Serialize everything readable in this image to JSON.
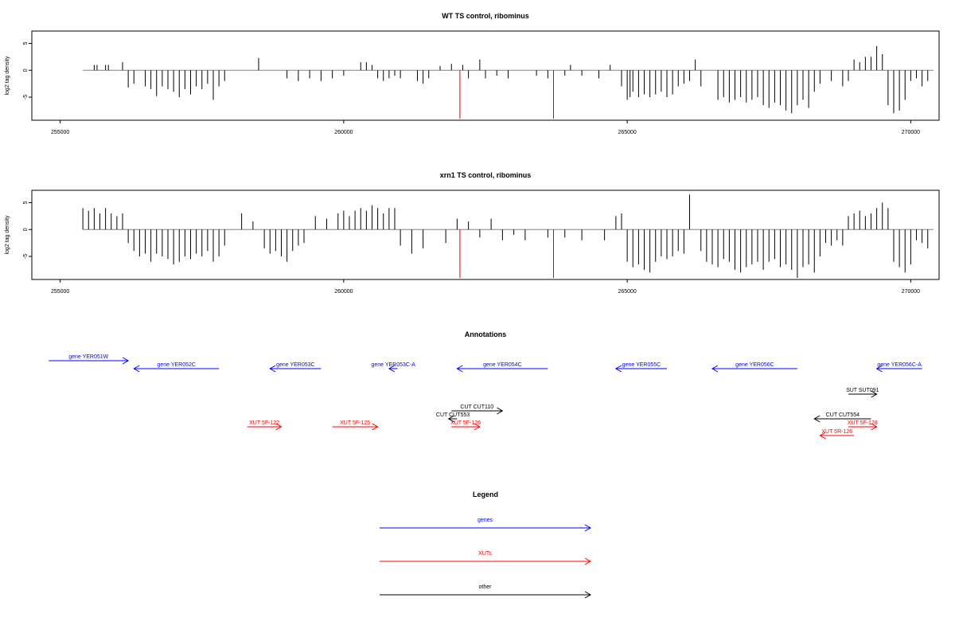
{
  "chart_data": [
    {
      "type": "bar",
      "title": "WT TS control, ribominus",
      "xlabel": "",
      "ylabel": "log2 tag density",
      "xlim": [
        254500,
        270500
      ],
      "ylim": [
        -9,
        7
      ],
      "xticks": [
        255000,
        260000,
        265000,
        270000
      ],
      "xtick_labels": [
        "255000",
        "260000",
        "265000",
        "270000"
      ],
      "yticks": [
        5,
        0,
        -5
      ],
      "ytick_labels": [
        "5",
        "0",
        "-5"
      ],
      "baseline": {
        "x0": 255400,
        "x1": 270400,
        "y": 0,
        "color": "#808080"
      },
      "highlight_lines": [
        {
          "x": 262050,
          "y": -9.0,
          "color": "#e00000"
        },
        {
          "x": 263700,
          "y": -9.0,
          "color": "#e00000"
        }
      ],
      "series": [
        {
          "color": "#000000",
          "x": [
            255600,
            255650,
            255800,
            255850,
            256100,
            256200,
            256300,
            256500,
            256600,
            256700,
            256800,
            256900,
            257000,
            257100,
            257200,
            257300,
            257400,
            257500,
            257600,
            257700,
            257800,
            257900,
            258500,
            259000,
            259200,
            259400,
            259600,
            259800,
            260000,
            260300,
            260400,
            260500,
            260600,
            260700,
            260800,
            260900,
            261000,
            261300,
            261400,
            261500,
            261700,
            261900,
            262100,
            262200,
            262400,
            262500,
            262700,
            262900,
            263400,
            263600,
            263900,
            264000,
            264200,
            264500,
            264700,
            264900,
            265000,
            265050,
            265100,
            265200,
            265300,
            265400,
            265500,
            265600,
            265700,
            265800,
            265900,
            266000,
            266100,
            266200,
            266300,
            266600,
            266700,
            266800,
            266900,
            267000,
            267100,
            267200,
            267300,
            267400,
            267500,
            267600,
            267700,
            267800,
            267900,
            268000,
            268100,
            268200,
            268300,
            268400,
            268600,
            268800,
            268900,
            269000,
            269100,
            269200,
            269300,
            269400,
            269500,
            269600,
            269700,
            269800,
            269900,
            270000,
            270100,
            270200,
            270300
          ],
          "values": [
            1.0,
            1.0,
            1.0,
            1.0,
            1.5,
            -3.2,
            -2.5,
            -3.0,
            -3.5,
            -4.8,
            -3.0,
            -3.5,
            -4.0,
            -5.0,
            -3.5,
            -4.5,
            -3.0,
            -3.5,
            -2.5,
            -5.5,
            -3.0,
            -2.0,
            2.3,
            -1.5,
            -2.0,
            -1.5,
            -2.0,
            -1.5,
            -1.0,
            1.5,
            1.5,
            1.0,
            -1.5,
            -2.0,
            -1.5,
            -1.0,
            -1.5,
            -2.0,
            -2.5,
            -1.5,
            0.8,
            1.2,
            1.0,
            -1.5,
            2.0,
            -1.5,
            -1.0,
            -1.5,
            -1.0,
            -1.5,
            -1.0,
            1.0,
            -1.0,
            -1.5,
            1.0,
            -3.0,
            -5.5,
            -5.0,
            -4.0,
            -5.0,
            -4.5,
            -5.0,
            -4.5,
            -4.0,
            -5.0,
            -4.5,
            -3.0,
            -2.5,
            -2.0,
            2.0,
            -3.0,
            -5.5,
            -5.0,
            -6.0,
            -5.5,
            -5.0,
            -6.0,
            -5.5,
            -5.0,
            -6.5,
            -7.0,
            -6.0,
            -6.5,
            -7.5,
            -8.0,
            -6.5,
            -5.5,
            -7.0,
            -4.0,
            -2.5,
            -2.0,
            -3.0,
            -2.0,
            2.0,
            1.5,
            2.5,
            2.5,
            4.5,
            3.0,
            -6.5,
            -8.0,
            -7.5,
            -5.5,
            -2.0,
            -1.5,
            -3.0,
            -2.0
          ]
        }
      ]
    },
    {
      "type": "bar",
      "title": "xrn1 TS control, ribominus",
      "xlabel": "",
      "ylabel": "log2 tag density",
      "xlim": [
        254500,
        270500
      ],
      "ylim": [
        -9,
        7
      ],
      "xticks": [
        255000,
        260000,
        265000,
        270000
      ],
      "xtick_labels": [
        "255000",
        "260000",
        "265000",
        "270000"
      ],
      "yticks": [
        5,
        0,
        -5
      ],
      "ytick_labels": [
        "5",
        "0",
        "-5"
      ],
      "baseline": {
        "x0": 255400,
        "x1": 270400,
        "y": 0,
        "color": "#808080"
      },
      "highlight_lines": [
        {
          "x": 262050,
          "y": -9.0,
          "color": "#e00000"
        },
        {
          "x": 263700,
          "y": -9.0,
          "color": "#e00000"
        }
      ],
      "series": [
        {
          "color": "#000000",
          "x": [
            255400,
            255500,
            255600,
            255700,
            255800,
            255900,
            256000,
            256100,
            256200,
            256300,
            256400,
            256500,
            256600,
            256700,
            256800,
            256900,
            257000,
            257100,
            257200,
            257300,
            257400,
            257500,
            257600,
            257700,
            257800,
            257900,
            258200,
            258400,
            258600,
            258700,
            258800,
            258900,
            259000,
            259100,
            259200,
            259300,
            259500,
            259700,
            259900,
            260000,
            260100,
            260200,
            260300,
            260400,
            260500,
            260600,
            260700,
            260800,
            260900,
            261000,
            261200,
            261400,
            261800,
            262000,
            262200,
            262400,
            262600,
            262800,
            263000,
            263200,
            263600,
            263900,
            264200,
            264600,
            264800,
            264900,
            265000,
            265100,
            265200,
            265300,
            265400,
            265500,
            265600,
            265700,
            265800,
            265900,
            266000,
            266100,
            266300,
            266400,
            266500,
            266600,
            266700,
            266800,
            266900,
            267000,
            267100,
            267200,
            267300,
            267400,
            267500,
            267600,
            267700,
            267800,
            267900,
            268000,
            268100,
            268200,
            268300,
            268400,
            268500,
            268600,
            268700,
            268800,
            268900,
            269000,
            269100,
            269200,
            269300,
            269400,
            269500,
            269600,
            269700,
            269800,
            269900,
            270000,
            270100,
            270200,
            270300
          ],
          "values": [
            4.0,
            3.5,
            4.0,
            3.0,
            4.0,
            3.0,
            2.5,
            3.0,
            -2.5,
            -4.0,
            -5.0,
            -4.5,
            -6.0,
            -4.5,
            -5.0,
            -5.5,
            -6.5,
            -6.0,
            -5.0,
            -5.5,
            -4.5,
            -5.0,
            -4.0,
            -6.0,
            -5.0,
            -3.0,
            3.0,
            1.5,
            -3.5,
            -4.5,
            -4.0,
            -5.0,
            -6.0,
            -4.0,
            -3.0,
            -2.5,
            2.5,
            2.0,
            3.0,
            3.5,
            2.5,
            3.5,
            4.0,
            3.5,
            4.5,
            4.0,
            3.0,
            4.0,
            4.0,
            -3.0,
            -4.5,
            -3.5,
            -2.5,
            2.0,
            1.5,
            -1.5,
            2.0,
            -2.0,
            -1.0,
            -2.0,
            -1.5,
            -1.5,
            -2.0,
            -2.0,
            2.5,
            3.0,
            -6.0,
            -7.0,
            -6.5,
            -7.5,
            -8.0,
            -6.0,
            -5.0,
            -5.5,
            -5.0,
            -4.0,
            -4.5,
            6.5,
            -4.0,
            -6.0,
            -6.5,
            -7.0,
            -5.5,
            -6.0,
            -7.5,
            -8.0,
            -7.0,
            -6.5,
            -6.0,
            -7.5,
            -6.0,
            -5.5,
            -7.0,
            -6.5,
            -7.5,
            -9.0,
            -7.0,
            -6.5,
            -8.0,
            -5.0,
            -2.5,
            -3.0,
            -2.0,
            -3.0,
            2.5,
            3.0,
            3.5,
            2.5,
            3.0,
            4.0,
            5.0,
            4.0,
            -6.0,
            -7.0,
            -8.0,
            -6.5,
            -2.0,
            -2.5,
            -3.5
          ]
        }
      ]
    },
    {
      "type": "other",
      "title": "Annotations",
      "xlim": [
        254500,
        270500
      ],
      "features": [
        {
          "label": "gene YER051W",
          "x0": 254800,
          "x1": 256200,
          "direction": "forward",
          "color": "#0000ff"
        },
        {
          "label": "gene YER052C",
          "x0": 256300,
          "x1": 257800,
          "direction": "reverse",
          "color": "#0000ff"
        },
        {
          "label": "gene YER053C",
          "x0": 258700,
          "x1": 259600,
          "direction": "reverse",
          "color": "#0000ff"
        },
        {
          "label": "gene YER053C-A",
          "x0": 260800,
          "x1": 260950,
          "direction": "reverse",
          "color": "#0000ff"
        },
        {
          "label": "gene YER054C",
          "x0": 262000,
          "x1": 263600,
          "direction": "reverse",
          "color": "#0000ff"
        },
        {
          "label": "gene YER055C",
          "x0": 264800,
          "x1": 265700,
          "direction": "reverse",
          "color": "#0000ff"
        },
        {
          "label": "gene YER056C",
          "x0": 266500,
          "x1": 268000,
          "direction": "reverse",
          "color": "#0000ff"
        },
        {
          "label": "gene YER056C-A",
          "x0": 269400,
          "x1": 270200,
          "direction": "reverse",
          "color": "#0000ff"
        },
        {
          "label": "SUT SUT091",
          "x0": 268900,
          "x1": 269400,
          "direction": "forward",
          "color": "#000000"
        },
        {
          "label": "CUT CUT110",
          "x0": 261900,
          "x1": 262800,
          "direction": "forward",
          "color": "#000000"
        },
        {
          "label": "CUT CUT553",
          "x0": 261850,
          "x1": 262000,
          "direction": "reverse",
          "color": "#000000"
        },
        {
          "label": "CUT CUT554",
          "x0": 268300,
          "x1": 269300,
          "direction": "reverse",
          "color": "#000000"
        },
        {
          "label": "XUT 5F-122",
          "x0": 258300,
          "x1": 258900,
          "direction": "forward",
          "color": "#ff0000"
        },
        {
          "label": "XUT 5F-125",
          "x0": 259800,
          "x1": 260600,
          "direction": "forward",
          "color": "#ff0000"
        },
        {
          "label": "XUT 5F-126",
          "x0": 261900,
          "x1": 262400,
          "direction": "forward",
          "color": "#ff0000"
        },
        {
          "label": "XUT 5F-128",
          "x0": 268900,
          "x1": 269400,
          "direction": "forward",
          "color": "#ff0000"
        },
        {
          "label": "XUT 5R-126",
          "x0": 268400,
          "x1": 269000,
          "direction": "reverse",
          "color": "#ff0000"
        }
      ]
    },
    {
      "type": "other",
      "title": "Legend",
      "entries": [
        {
          "label": "genes",
          "color": "#0000ff"
        },
        {
          "label": "XUTs",
          "color": "#ff0000"
        },
        {
          "label": "other",
          "color": "#000000"
        }
      ]
    }
  ]
}
